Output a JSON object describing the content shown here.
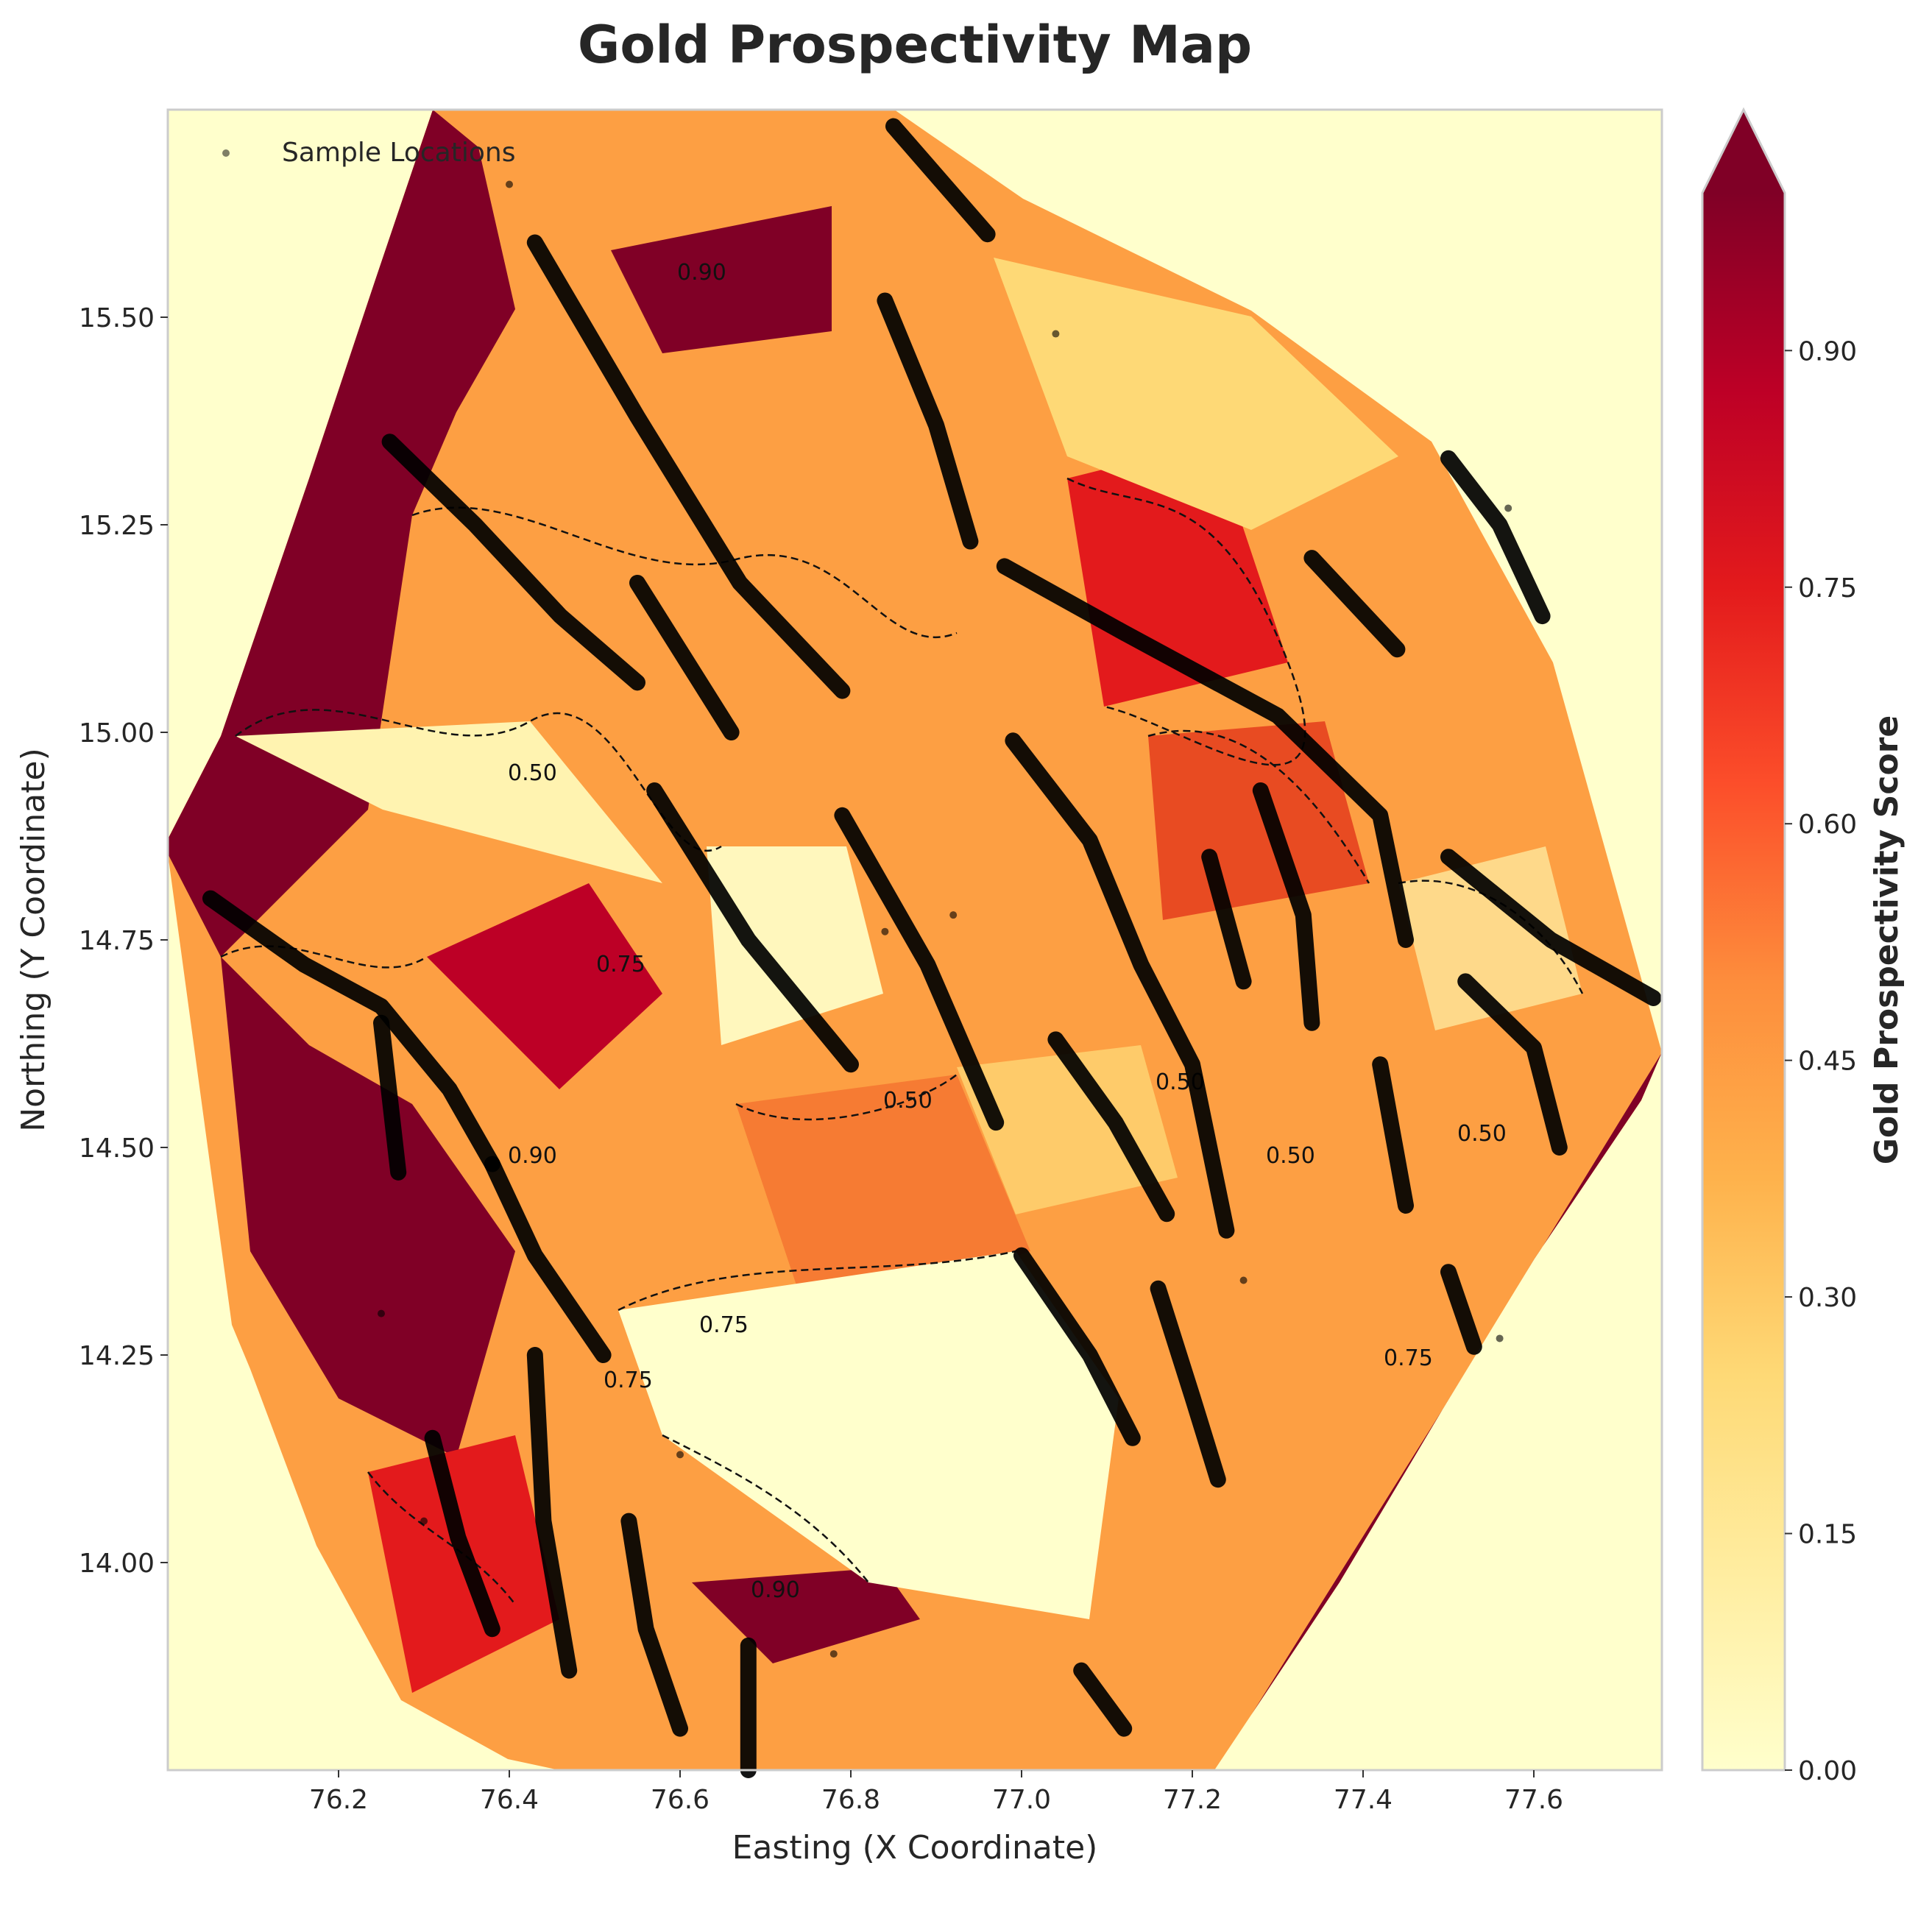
{
  "chart_data": {
    "type": "contour",
    "title": "Gold Prospectivity Map",
    "xlabel": "Easting (X Coordinate)",
    "ylabel": "Northing (Y Coordinate)",
    "xlim": [
      76.0,
      77.75
    ],
    "ylim": [
      13.75,
      15.75
    ],
    "xticks": [
      "76.2",
      "76.4",
      "76.6",
      "76.8",
      "77.0",
      "77.2",
      "77.4",
      "77.6"
    ],
    "xtick_values": [
      76.2,
      76.4,
      76.6,
      76.8,
      77.0,
      77.2,
      77.4,
      77.6
    ],
    "yticks": [
      "14.00",
      "14.25",
      "14.50",
      "14.75",
      "15.00",
      "15.25",
      "15.50"
    ],
    "ytick_values": [
      14.0,
      14.25,
      14.5,
      14.75,
      15.0,
      15.25,
      15.5
    ],
    "grid": false,
    "legend": {
      "placement": "top-left",
      "entries": [
        "Sample Locations"
      ]
    },
    "colorbar": {
      "label": "Gold Prospectivity Score",
      "ticks": [
        "0.00",
        "0.15",
        "0.30",
        "0.45",
        "0.60",
        "0.75",
        "0.90"
      ],
      "tick_values": [
        0.0,
        0.15,
        0.3,
        0.45,
        0.6,
        0.75,
        0.9
      ],
      "range": [
        0.0,
        1.0
      ],
      "extend": "max",
      "colormap": "YlOrRd"
    },
    "contour_levels": [
      0.5,
      0.75,
      0.9
    ],
    "contour_labels": [
      "0.50",
      "0.75",
      "0.90"
    ],
    "sample_traverses": [
      [
        [
          76.43,
          15.59
        ],
        [
          76.55,
          15.38
        ],
        [
          76.67,
          15.18
        ],
        [
          76.79,
          15.05
        ]
      ],
      [
        [
          76.55,
          15.18
        ],
        [
          76.66,
          15.0
        ]
      ],
      [
        [
          76.57,
          14.93
        ],
        [
          76.68,
          14.75
        ],
        [
          76.8,
          14.6
        ]
      ],
      [
        [
          76.79,
          14.9
        ],
        [
          76.89,
          14.72
        ],
        [
          76.97,
          14.53
        ]
      ],
      [
        [
          76.84,
          15.52
        ],
        [
          76.9,
          15.37
        ],
        [
          76.94,
          15.23
        ]
      ],
      [
        [
          76.85,
          15.73
        ],
        [
          76.96,
          15.6
        ]
      ],
      [
        [
          76.99,
          14.99
        ],
        [
          77.08,
          14.87
        ],
        [
          77.14,
          14.72
        ],
        [
          77.2,
          14.6
        ],
        [
          77.24,
          14.4
        ]
      ],
      [
        [
          76.98,
          15.2
        ],
        [
          77.12,
          15.12
        ],
        [
          77.3,
          15.02
        ],
        [
          77.42,
          14.9
        ],
        [
          77.45,
          14.75
        ]
      ],
      [
        [
          77.34,
          15.21
        ],
        [
          77.44,
          15.1
        ]
      ],
      [
        [
          77.5,
          15.33
        ],
        [
          77.56,
          15.25
        ],
        [
          77.61,
          15.14
        ]
      ],
      [
        [
          77.5,
          14.85
        ],
        [
          77.62,
          14.75
        ],
        [
          77.74,
          14.68
        ]
      ],
      [
        [
          77.52,
          14.7
        ],
        [
          77.6,
          14.62
        ],
        [
          77.63,
          14.5
        ]
      ],
      [
        [
          77.22,
          14.85
        ],
        [
          77.26,
          14.7
        ]
      ],
      [
        [
          77.28,
          14.93
        ],
        [
          77.33,
          14.78
        ],
        [
          77.34,
          14.65
        ]
      ],
      [
        [
          77.0,
          14.37
        ],
        [
          77.08,
          14.25
        ],
        [
          77.13,
          14.15
        ]
      ],
      [
        [
          77.16,
          14.33
        ],
        [
          77.2,
          14.2
        ],
        [
          77.23,
          14.1
        ]
      ],
      [
        [
          77.04,
          14.63
        ],
        [
          77.11,
          14.53
        ],
        [
          77.17,
          14.42
        ]
      ],
      [
        [
          77.07,
          13.87
        ],
        [
          77.12,
          13.8
        ]
      ],
      [
        [
          76.05,
          14.8
        ],
        [
          76.16,
          14.72
        ],
        [
          76.25,
          14.67
        ],
        [
          76.33,
          14.57
        ],
        [
          76.38,
          14.48
        ]
      ],
      [
        [
          76.38,
          14.48
        ],
        [
          76.43,
          14.37
        ],
        [
          76.51,
          14.25
        ]
      ],
      [
        [
          76.25,
          14.65
        ],
        [
          76.27,
          14.47
        ]
      ],
      [
        [
          76.26,
          15.35
        ],
        [
          76.36,
          15.25
        ],
        [
          76.46,
          15.14
        ],
        [
          76.55,
          15.06
        ]
      ],
      [
        [
          76.43,
          14.25
        ],
        [
          76.44,
          14.05
        ],
        [
          76.47,
          13.87
        ]
      ],
      [
        [
          76.54,
          14.05
        ],
        [
          76.56,
          13.92
        ],
        [
          76.6,
          13.8
        ]
      ],
      [
        [
          76.68,
          13.9
        ],
        [
          76.68,
          13.75
        ]
      ],
      [
        [
          76.31,
          14.15
        ],
        [
          76.34,
          14.03
        ],
        [
          76.38,
          13.92
        ]
      ],
      [
        [
          77.5,
          14.35
        ],
        [
          77.53,
          14.26
        ]
      ],
      [
        [
          77.42,
          14.6
        ],
        [
          77.45,
          14.43
        ]
      ]
    ],
    "sample_points": [
      [
        77.04,
        15.48
      ],
      [
        76.4,
        15.66
      ],
      [
        76.3,
        14.05
      ],
      [
        76.6,
        14.13
      ],
      [
        76.25,
        14.3
      ],
      [
        77.56,
        14.27
      ],
      [
        77.57,
        15.27
      ],
      [
        76.84,
        14.76
      ],
      [
        77.26,
        14.34
      ],
      [
        76.78,
        13.89
      ],
      [
        76.92,
        14.78
      ]
    ]
  }
}
